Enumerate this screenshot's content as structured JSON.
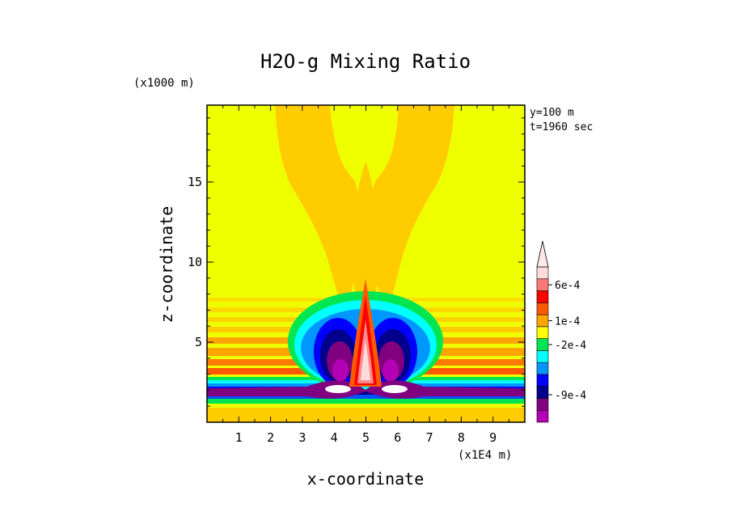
{
  "chart_data": {
    "type": "heatmap",
    "title": "H2O-g Mixing Ratio",
    "xlabel": "x-coordinate",
    "ylabel": "z-coordinate",
    "x_units": "(x1E4 m)",
    "y_units": "(x1000 m)",
    "xlim": [
      0,
      10
    ],
    "ylim": [
      0,
      19.8
    ],
    "x_ticks": [
      "1",
      "2",
      "3",
      "4",
      "5",
      "6",
      "7",
      "8",
      "9"
    ],
    "y_ticks": [
      "5",
      "10",
      "15"
    ],
    "annotations": [
      "y=100 m",
      "t=1960 sec"
    ],
    "colorbar": {
      "labels": [
        "6e-4",
        "1e-4",
        "-2e-4",
        "-9e-4"
      ],
      "levels": [
        -0.0013,
        -0.0011,
        -0.0009,
        -0.0007,
        -0.0005,
        -0.0003,
        -0.0002,
        -0.0001,
        0.0,
        0.0001,
        0.0002,
        0.0004,
        0.0006,
        0.0008,
        0.001
      ],
      "colors": [
        "#b400b4",
        "#800080",
        "#00008c",
        "#0000ff",
        "#0096ff",
        "#00ffff",
        "#00e650",
        "#ffff00",
        "#ffa500",
        "#ff5a00",
        "#ff0000",
        "#ff7878",
        "#ffdcdc"
      ]
    },
    "field_description_levels": {
      "background": "#ffff00",
      "plume": "#ffa500",
      "surface_layer": "#ffa500"
    }
  }
}
